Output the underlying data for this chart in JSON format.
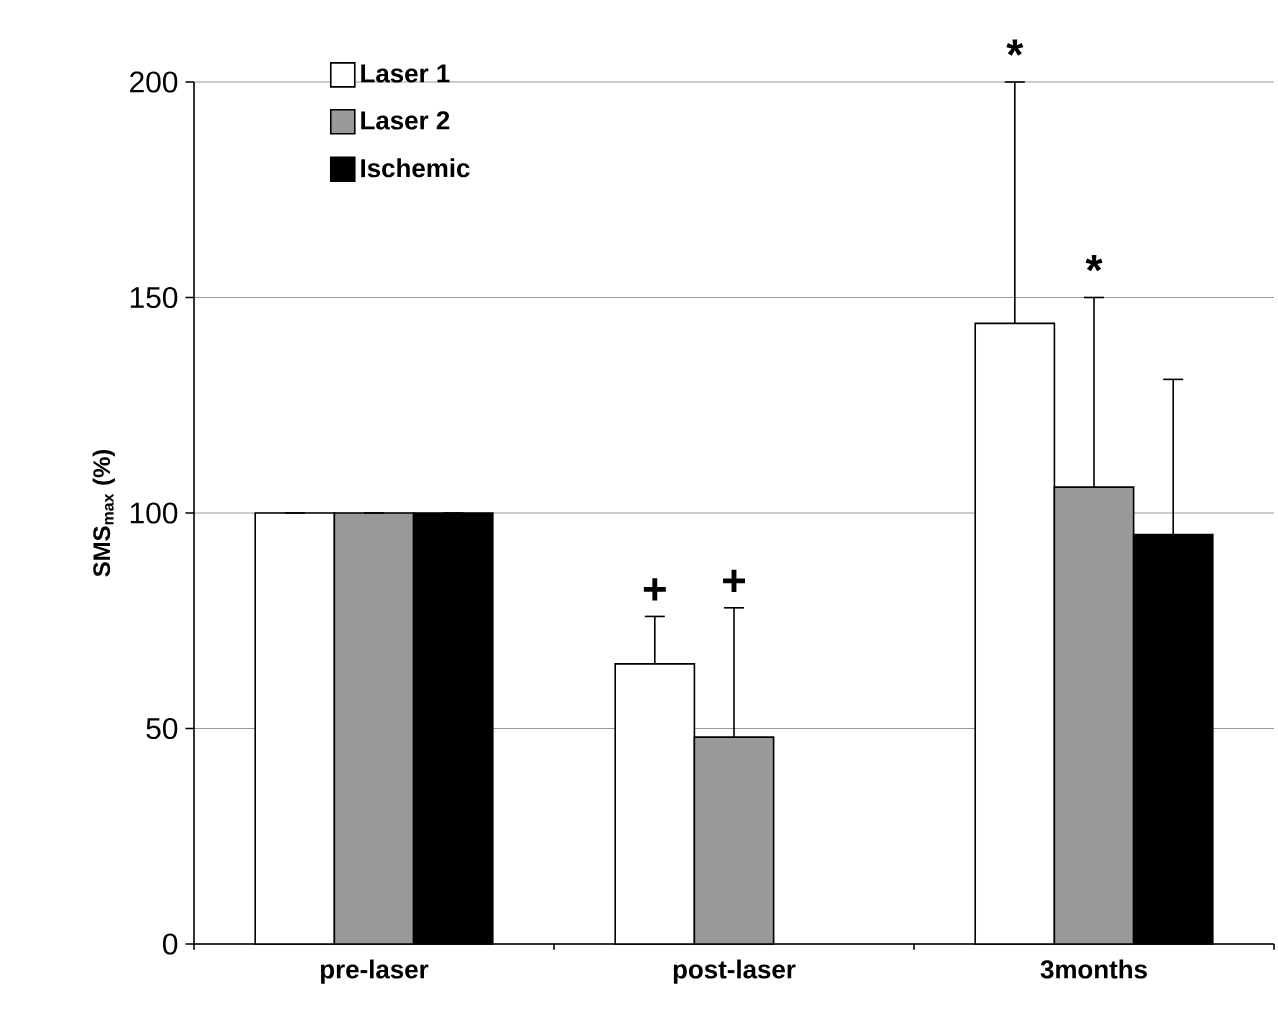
{
  "chart_data": {
    "type": "bar",
    "ylabel": "SMS$_{max}$ (%)",
    "categories": [
      "pre-laser",
      "post-laser",
      "3months"
    ],
    "series": [
      {
        "name": "Laser 1",
        "color": "#ffffff",
        "values": [
          100,
          65,
          144
        ],
        "errors": [
          null,
          11,
          56
        ]
      },
      {
        "name": "Laser 2",
        "color": "#999999",
        "values": [
          100,
          48,
          106
        ],
        "errors": [
          null,
          30,
          44
        ]
      },
      {
        "name": "Ischemic",
        "color": "#000000",
        "values": [
          100,
          null,
          95
        ],
        "errors": [
          null,
          null,
          36
        ]
      }
    ],
    "ylim": [
      0,
      200
    ],
    "yticks": [
      0,
      50,
      100,
      150,
      200
    ],
    "grid": "y",
    "legend": "top left",
    "annotations": [
      "+",
      "+",
      "*",
      "*"
    ]
  }
}
